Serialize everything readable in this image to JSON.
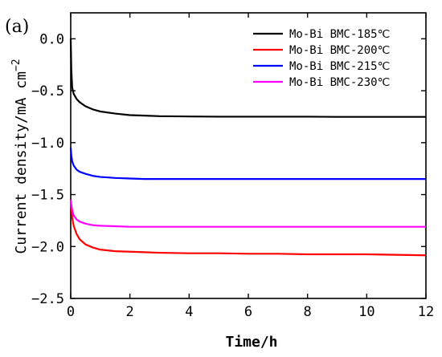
{
  "panel_label": "(a)",
  "chart_data": {
    "type": "line",
    "title": "",
    "xlabel": "Time/h",
    "ylabel": "Current density/mA cm",
    "ylabel_superscript": "−2",
    "xlim": [
      0,
      12
    ],
    "ylim": [
      -2.5,
      0.25
    ],
    "xticks": [
      0,
      2,
      4,
      6,
      8,
      10,
      12
    ],
    "xtick_labels": [
      "0",
      "2",
      "4",
      "6",
      "8",
      "10",
      "12"
    ],
    "yticks": [
      0.0,
      -0.5,
      -1.0,
      -1.5,
      -2.0,
      -2.5
    ],
    "ytick_labels": [
      "0.0",
      "−0.5",
      "−1.0",
      "−1.5",
      "−2.0",
      "−2.5"
    ],
    "grid": false,
    "legend_position": "top-right",
    "series": [
      {
        "name": "Mo-Bi BMC-185℃",
        "color": "#000000",
        "x": [
          0,
          0.02,
          0.05,
          0.1,
          0.2,
          0.3,
          0.5,
          0.75,
          1,
          1.5,
          2,
          2.5,
          3,
          4,
          5,
          6,
          7,
          8,
          9,
          10,
          11,
          12
        ],
        "y": [
          0.0,
          -0.3,
          -0.47,
          -0.53,
          -0.58,
          -0.61,
          -0.65,
          -0.68,
          -0.7,
          -0.72,
          -0.735,
          -0.74,
          -0.745,
          -0.748,
          -0.75,
          -0.75,
          -0.75,
          -0.75,
          -0.752,
          -0.752,
          -0.752,
          -0.752
        ]
      },
      {
        "name": "Mo-Bi BMC-200℃",
        "color": "#ff0000",
        "x": [
          0,
          0.02,
          0.05,
          0.1,
          0.2,
          0.3,
          0.5,
          0.75,
          1,
          1.5,
          2,
          2.5,
          3,
          4,
          5,
          6,
          7,
          8,
          9,
          10,
          11,
          12
        ],
        "y": [
          -1.55,
          -1.62,
          -1.72,
          -1.8,
          -1.88,
          -1.93,
          -1.98,
          -2.01,
          -2.03,
          -2.045,
          -2.05,
          -2.055,
          -2.06,
          -2.065,
          -2.065,
          -2.07,
          -2.07,
          -2.075,
          -2.075,
          -2.075,
          -2.08,
          -2.085
        ]
      },
      {
        "name": "Mo-Bi BMC-215℃",
        "color": "#0000ff",
        "x": [
          0,
          0.02,
          0.05,
          0.1,
          0.2,
          0.3,
          0.5,
          0.75,
          1,
          1.5,
          2,
          2.5,
          3,
          4,
          5,
          6,
          7,
          8,
          9,
          10,
          11,
          12
        ],
        "y": [
          -1.05,
          -1.12,
          -1.18,
          -1.22,
          -1.26,
          -1.28,
          -1.3,
          -1.32,
          -1.33,
          -1.34,
          -1.345,
          -1.35,
          -1.35,
          -1.35,
          -1.35,
          -1.35,
          -1.35,
          -1.35,
          -1.35,
          -1.35,
          -1.35,
          -1.35
        ]
      },
      {
        "name": "Mo-Bi BMC-230℃",
        "color": "#ff00ff",
        "x": [
          0,
          0.02,
          0.05,
          0.1,
          0.2,
          0.3,
          0.5,
          0.75,
          1,
          1.5,
          2,
          2.5,
          3,
          4,
          5,
          6,
          7,
          8,
          9,
          10,
          11,
          12
        ],
        "y": [
          -1.55,
          -1.6,
          -1.65,
          -1.7,
          -1.74,
          -1.76,
          -1.78,
          -1.795,
          -1.8,
          -1.805,
          -1.81,
          -1.81,
          -1.81,
          -1.81,
          -1.81,
          -1.81,
          -1.81,
          -1.81,
          -1.81,
          -1.81,
          -1.81,
          -1.81
        ]
      }
    ]
  }
}
